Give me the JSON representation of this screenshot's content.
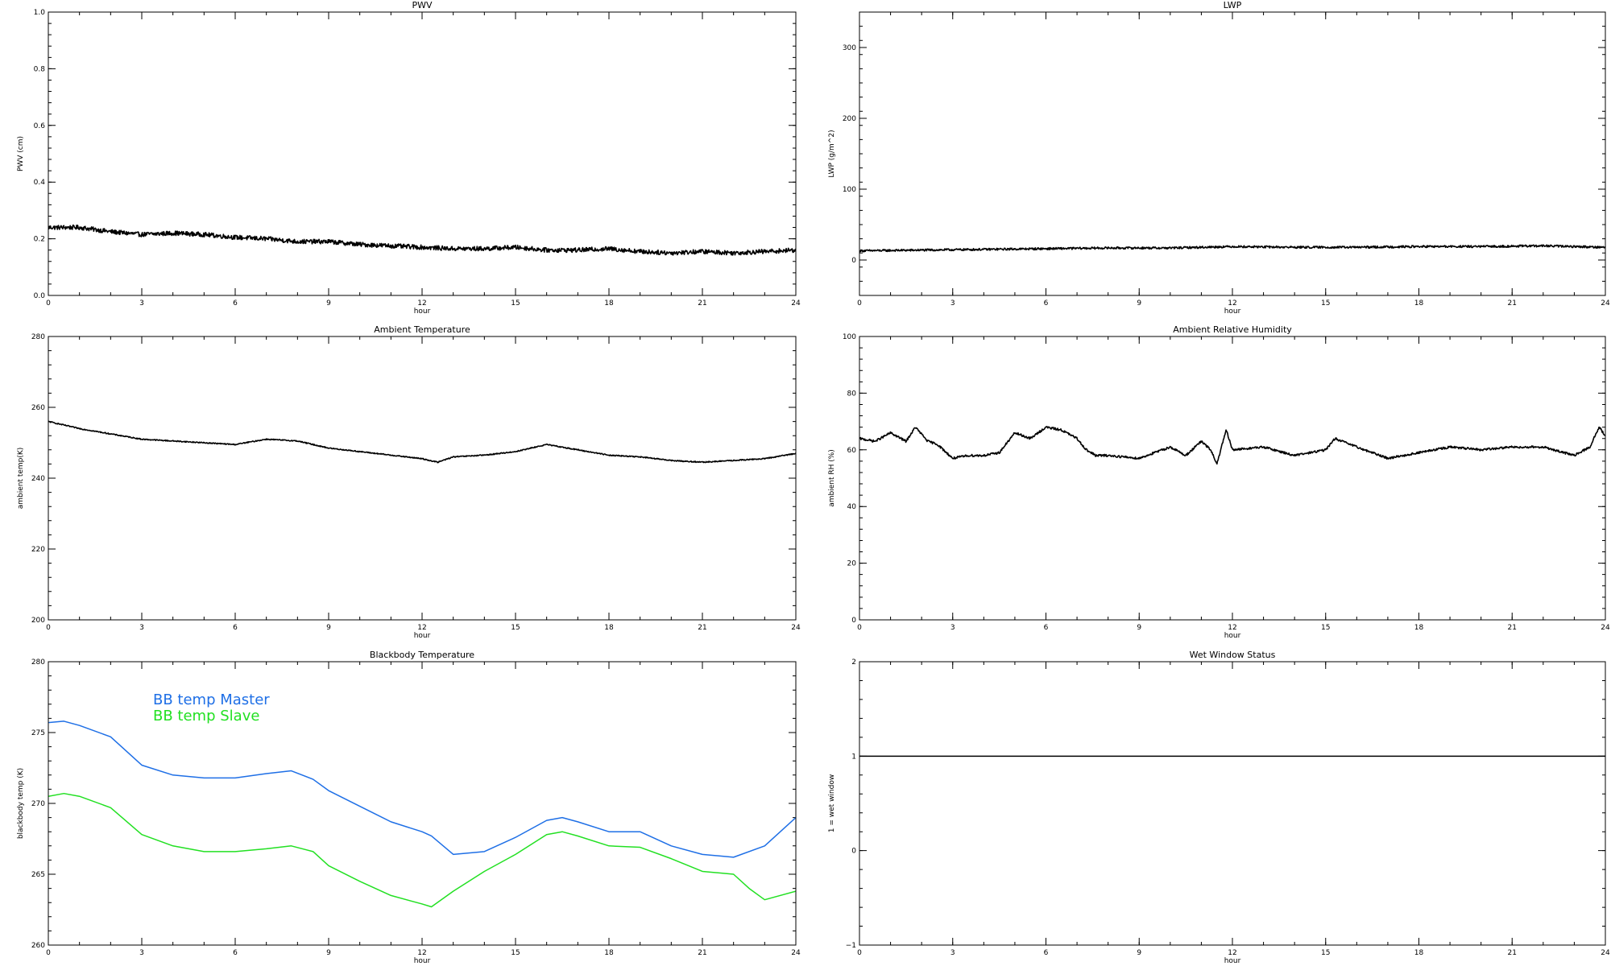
{
  "chart_data": [
    {
      "type": "line",
      "title": "PWV",
      "xlabel": "hour",
      "ylabel": "PWV (cm)",
      "xlim": [
        0,
        24
      ],
      "ylim": [
        0.0,
        1.0
      ],
      "xticks": [
        0,
        3,
        6,
        9,
        12,
        15,
        18,
        21,
        24
      ],
      "xtick_labels": [
        "0",
        "3",
        "6",
        "9",
        "12",
        "15",
        "18",
        "21",
        "24"
      ],
      "yticks": [
        0.0,
        0.2,
        0.4,
        0.6,
        0.8,
        1.0
      ],
      "ytick_labels": [
        "0.0",
        "0.2",
        "0.4",
        "0.6",
        "0.8",
        "1.0"
      ],
      "noise": 0.008,
      "series": [
        {
          "color": "#000000",
          "x": [
            0,
            1,
            2,
            3,
            4,
            5,
            6,
            7,
            8,
            9,
            10,
            11,
            12,
            13,
            14,
            15,
            16,
            17,
            18,
            19,
            20,
            21,
            22,
            23,
            24
          ],
          "y": [
            0.24,
            0.24,
            0.225,
            0.215,
            0.22,
            0.215,
            0.205,
            0.2,
            0.19,
            0.19,
            0.18,
            0.175,
            0.17,
            0.165,
            0.165,
            0.17,
            0.16,
            0.16,
            0.165,
            0.155,
            0.15,
            0.155,
            0.15,
            0.155,
            0.16
          ]
        }
      ]
    },
    {
      "type": "line",
      "title": "LWP",
      "xlabel": "hour",
      "ylabel": "LWP (g/m^2)",
      "xlim": [
        0,
        24
      ],
      "ylim": [
        -50,
        350
      ],
      "xticks": [
        0,
        3,
        6,
        9,
        12,
        15,
        18,
        21,
        24
      ],
      "xtick_labels": [
        "0",
        "3",
        "6",
        "9",
        "12",
        "15",
        "18",
        "21",
        "24"
      ],
      "yticks": [
        0,
        100,
        200,
        300
      ],
      "ytick_labels": [
        "0",
        "100",
        "200",
        "300"
      ],
      "noise": 1.5,
      "series": [
        {
          "color": "#000000",
          "x": [
            0,
            2,
            4,
            6,
            8,
            10,
            12,
            14,
            16,
            18,
            20,
            22,
            24
          ],
          "y": [
            13,
            14,
            15,
            16,
            17,
            17,
            19,
            18,
            18,
            19,
            19,
            20,
            18
          ]
        }
      ]
    },
    {
      "type": "line",
      "title": "Ambient Temperature",
      "xlabel": "hour",
      "ylabel": "ambient temp(K)",
      "xlim": [
        0,
        24
      ],
      "ylim": [
        200,
        280
      ],
      "xticks": [
        0,
        3,
        6,
        9,
        12,
        15,
        18,
        21,
        24
      ],
      "xtick_labels": [
        "0",
        "3",
        "6",
        "9",
        "12",
        "15",
        "18",
        "21",
        "24"
      ],
      "yticks": [
        200,
        220,
        240,
        260,
        280
      ],
      "ytick_labels": [
        "200",
        "220",
        "240",
        "260",
        "280"
      ],
      "noise": 0.15,
      "series": [
        {
          "color": "#000000",
          "x": [
            0,
            1,
            2,
            3,
            4,
            5,
            6,
            7,
            8,
            9,
            10,
            11,
            12,
            12.5,
            13,
            14,
            15,
            16,
            17,
            18,
            19,
            20,
            21,
            22,
            23,
            24
          ],
          "y": [
            256,
            254,
            252.5,
            251,
            250.5,
            250,
            249.5,
            251,
            250.5,
            248.5,
            247.5,
            246.5,
            245.5,
            244.5,
            246,
            246.5,
            247.5,
            249.5,
            248,
            246.5,
            246,
            245,
            244.5,
            245,
            245.5,
            247
          ]
        }
      ]
    },
    {
      "type": "line",
      "title": "Ambient Relative Humidity",
      "xlabel": "hour",
      "ylabel": "ambient RH (%)",
      "xlim": [
        0,
        24
      ],
      "ylim": [
        0,
        100
      ],
      "xticks": [
        0,
        3,
        6,
        9,
        12,
        15,
        18,
        21,
        24
      ],
      "xtick_labels": [
        "0",
        "3",
        "6",
        "9",
        "12",
        "15",
        "18",
        "21",
        "24"
      ],
      "yticks": [
        0,
        20,
        40,
        60,
        80,
        100
      ],
      "ytick_labels": [
        "0",
        "20",
        "40",
        "60",
        "80",
        "100"
      ],
      "noise": 0.4,
      "series": [
        {
          "color": "#000000",
          "x": [
            0,
            0.5,
            1,
            1.5,
            1.8,
            2.2,
            2.5,
            3,
            3.5,
            4,
            4.5,
            5,
            5.5,
            6,
            6.5,
            7,
            7.3,
            7.6,
            8,
            9,
            10,
            10.5,
            11,
            11.3,
            11.5,
            11.8,
            12,
            13,
            14,
            15,
            15.3,
            16,
            17,
            18,
            19,
            20,
            21,
            22,
            23,
            23.5,
            23.8,
            24
          ],
          "y": [
            64,
            63,
            66,
            63,
            68,
            63,
            62,
            57,
            58,
            58,
            59,
            66,
            64,
            68,
            67,
            64,
            60,
            58,
            58,
            57,
            61,
            58,
            63,
            60,
            55,
            67,
            60,
            61,
            58,
            60,
            64,
            61,
            57,
            59,
            61,
            60,
            61,
            61,
            58,
            61,
            68,
            65
          ]
        }
      ]
    },
    {
      "type": "line",
      "title": "Blackbody Temperature",
      "xlabel": "hour",
      "ylabel": "blackbody temp (K)",
      "xlim": [
        0,
        24
      ],
      "ylim": [
        260,
        280
      ],
      "xticks": [
        0,
        3,
        6,
        9,
        12,
        15,
        18,
        21,
        24
      ],
      "xtick_labels": [
        "0",
        "3",
        "6",
        "9",
        "12",
        "15",
        "18",
        "21",
        "24"
      ],
      "yticks": [
        260,
        265,
        270,
        275,
        280
      ],
      "ytick_labels": [
        "260",
        "265",
        "270",
        "275",
        "280"
      ],
      "noise": 0,
      "legend": "top-left",
      "series": [
        {
          "name": "BB temp Master",
          "color": "#1e6fe6",
          "x": [
            0,
            0.5,
            1,
            2,
            3,
            4,
            5,
            6,
            7,
            7.8,
            8.5,
            9,
            10,
            11,
            12,
            12.3,
            13,
            14,
            15,
            16,
            16.5,
            17,
            18,
            19,
            20,
            21,
            22,
            23,
            24
          ],
          "y": [
            275.7,
            275.8,
            275.5,
            274.7,
            272.7,
            272,
            271.8,
            271.8,
            272.1,
            272.3,
            271.7,
            270.9,
            269.8,
            268.7,
            268,
            267.7,
            266.4,
            266.6,
            267.6,
            268.8,
            269,
            268.7,
            268,
            268,
            267,
            266.4,
            266.2,
            267,
            269
          ]
        },
        {
          "name": "BB temp Slave",
          "color": "#22e022",
          "x": [
            0,
            0.5,
            1,
            2,
            3,
            4,
            5,
            6,
            7,
            7.8,
            8.5,
            9,
            10,
            11,
            12,
            12.3,
            13,
            14,
            15,
            16,
            16.5,
            17,
            18,
            19,
            20,
            21,
            22,
            22.5,
            23,
            24
          ],
          "y": [
            270.5,
            270.7,
            270.5,
            269.7,
            267.8,
            267,
            266.6,
            266.6,
            266.8,
            267,
            266.6,
            265.6,
            264.5,
            263.5,
            262.9,
            262.7,
            263.8,
            265.2,
            266.4,
            267.8,
            268,
            267.7,
            267,
            266.9,
            266.1,
            265.2,
            265,
            264,
            263.2,
            263.8
          ]
        }
      ]
    },
    {
      "type": "line",
      "title": "Wet Window Status",
      "xlabel": "hour",
      "ylabel": "1 = wet window",
      "xlim": [
        0,
        24
      ],
      "ylim": [
        -1,
        2
      ],
      "xticks": [
        0,
        3,
        6,
        9,
        12,
        15,
        18,
        21,
        24
      ],
      "xtick_labels": [
        "0",
        "3",
        "6",
        "9",
        "12",
        "15",
        "18",
        "21",
        "24"
      ],
      "yticks": [
        -1,
        0,
        1,
        2
      ],
      "ytick_labels": [
        "−1",
        "0",
        "1",
        "2"
      ],
      "noise": 0,
      "series": [
        {
          "color": "#000000",
          "x": [
            0,
            24
          ],
          "y": [
            1,
            1
          ]
        }
      ]
    }
  ]
}
